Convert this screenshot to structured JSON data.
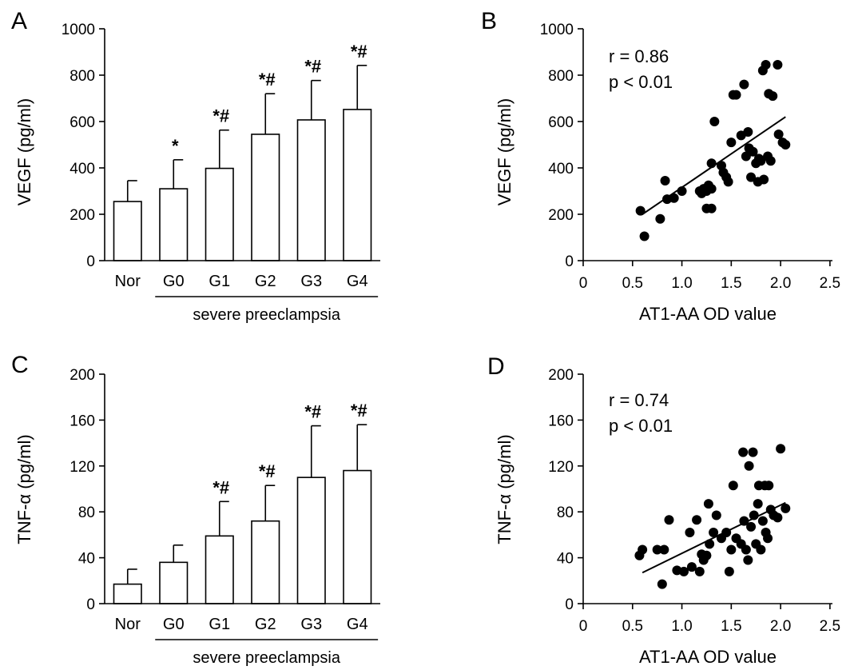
{
  "chart_data": [
    {
      "panel": "A",
      "type": "bar",
      "ylabel": "VEGF (pg/ml)",
      "ylim": [
        0,
        1000
      ],
      "yticks": [
        0,
        200,
        400,
        600,
        800,
        1000
      ],
      "categories": [
        "Nor",
        "G0",
        "G1",
        "G2",
        "G3",
        "G4"
      ],
      "values": [
        255,
        310,
        398,
        545,
        607,
        652
      ],
      "errors": [
        90,
        125,
        165,
        175,
        170,
        190
      ],
      "significance": [
        "",
        "*",
        "*#",
        "*#",
        "*#",
        "*#"
      ],
      "group_label": "severe preeclampsia"
    },
    {
      "panel": "B",
      "type": "scatter",
      "xlabel": "AT1-AA OD value",
      "ylabel": "VEGF (pg/ml)",
      "xlim": [
        0,
        2.5
      ],
      "ylim": [
        0,
        1000
      ],
      "xticks": [
        "0",
        "0.5",
        "1.0",
        "1.5",
        "2.0",
        "2.5"
      ],
      "yticks": [
        0,
        200,
        400,
        600,
        800,
        1000
      ],
      "stats": [
        "r = 0.86",
        "p < 0.01"
      ],
      "fit_line": [
        [
          0.6,
          200
        ],
        [
          2.05,
          620
        ]
      ],
      "points": [
        [
          0.58,
          215
        ],
        [
          0.62,
          105
        ],
        [
          0.78,
          180
        ],
        [
          0.83,
          345
        ],
        [
          0.85,
          265
        ],
        [
          0.92,
          270
        ],
        [
          1.0,
          300
        ],
        [
          1.18,
          300
        ],
        [
          1.2,
          290
        ],
        [
          1.22,
          310
        ],
        [
          1.25,
          300
        ],
        [
          1.25,
          225
        ],
        [
          1.27,
          325
        ],
        [
          1.3,
          310
        ],
        [
          1.3,
          225
        ],
        [
          1.3,
          420
        ],
        [
          1.33,
          600
        ],
        [
          1.4,
          410
        ],
        [
          1.42,
          380
        ],
        [
          1.45,
          360
        ],
        [
          1.47,
          340
        ],
        [
          1.5,
          510
        ],
        [
          1.52,
          715
        ],
        [
          1.55,
          715
        ],
        [
          1.6,
          540
        ],
        [
          1.63,
          760
        ],
        [
          1.65,
          450
        ],
        [
          1.67,
          555
        ],
        [
          1.68,
          485
        ],
        [
          1.7,
          360
        ],
        [
          1.72,
          470
        ],
        [
          1.75,
          420
        ],
        [
          1.77,
          340
        ],
        [
          1.78,
          440
        ],
        [
          1.8,
          430
        ],
        [
          1.82,
          820
        ],
        [
          1.83,
          350
        ],
        [
          1.85,
          845
        ],
        [
          1.87,
          450
        ],
        [
          1.88,
          720
        ],
        [
          1.9,
          430
        ],
        [
          1.92,
          710
        ],
        [
          1.97,
          845
        ],
        [
          1.98,
          545
        ],
        [
          2.02,
          510
        ],
        [
          2.05,
          500
        ]
      ]
    },
    {
      "panel": "C",
      "type": "bar",
      "ylabel": "TNF-α (pg/ml)",
      "ylim": [
        0,
        200
      ],
      "yticks": [
        0,
        40,
        80,
        120,
        160,
        200
      ],
      "categories": [
        "Nor",
        "G0",
        "G1",
        "G2",
        "G3",
        "G4"
      ],
      "values": [
        17,
        36,
        59,
        72,
        110,
        116
      ],
      "errors": [
        13,
        15,
        30,
        31,
        45,
        40
      ],
      "significance": [
        "",
        "",
        "*#",
        "*#",
        "*#",
        "*#"
      ],
      "group_label": "severe preeclampsia"
    },
    {
      "panel": "D",
      "type": "scatter",
      "xlabel": "AT1-AA OD value",
      "ylabel": "TNF-α (pg/ml)",
      "xlim": [
        0,
        2.5
      ],
      "ylim": [
        0,
        200
      ],
      "xticks": [
        "0",
        "0.5",
        "1.0",
        "1.5",
        "2.0",
        "2.5"
      ],
      "yticks": [
        0,
        40,
        80,
        120,
        160,
        200
      ],
      "stats": [
        "r = 0.74",
        "p < 0.01"
      ],
      "fit_line": [
        [
          0.6,
          27
        ],
        [
          2.05,
          88
        ]
      ],
      "points": [
        [
          0.57,
          42
        ],
        [
          0.6,
          47
        ],
        [
          0.75,
          47
        ],
        [
          0.8,
          17
        ],
        [
          0.82,
          47
        ],
        [
          0.87,
          73
        ],
        [
          0.95,
          29
        ],
        [
          1.02,
          28
        ],
        [
          1.08,
          62
        ],
        [
          1.1,
          32
        ],
        [
          1.15,
          73
        ],
        [
          1.18,
          28
        ],
        [
          1.2,
          43
        ],
        [
          1.22,
          38
        ],
        [
          1.25,
          42
        ],
        [
          1.27,
          87
        ],
        [
          1.28,
          52
        ],
        [
          1.32,
          62
        ],
        [
          1.35,
          77
        ],
        [
          1.4,
          57
        ],
        [
          1.45,
          62
        ],
        [
          1.48,
          28
        ],
        [
          1.5,
          47
        ],
        [
          1.52,
          103
        ],
        [
          1.55,
          57
        ],
        [
          1.6,
          52
        ],
        [
          1.62,
          132
        ],
        [
          1.63,
          72
        ],
        [
          1.65,
          47
        ],
        [
          1.67,
          38
        ],
        [
          1.68,
          120
        ],
        [
          1.7,
          67
        ],
        [
          1.72,
          132
        ],
        [
          1.73,
          77
        ],
        [
          1.75,
          52
        ],
        [
          1.77,
          87
        ],
        [
          1.78,
          103
        ],
        [
          1.8,
          47
        ],
        [
          1.82,
          72
        ],
        [
          1.84,
          103
        ],
        [
          1.85,
          62
        ],
        [
          1.87,
          57
        ],
        [
          1.88,
          103
        ],
        [
          1.9,
          82
        ],
        [
          1.93,
          77
        ],
        [
          1.97,
          75
        ],
        [
          2.0,
          135
        ],
        [
          2.05,
          83
        ]
      ]
    }
  ]
}
